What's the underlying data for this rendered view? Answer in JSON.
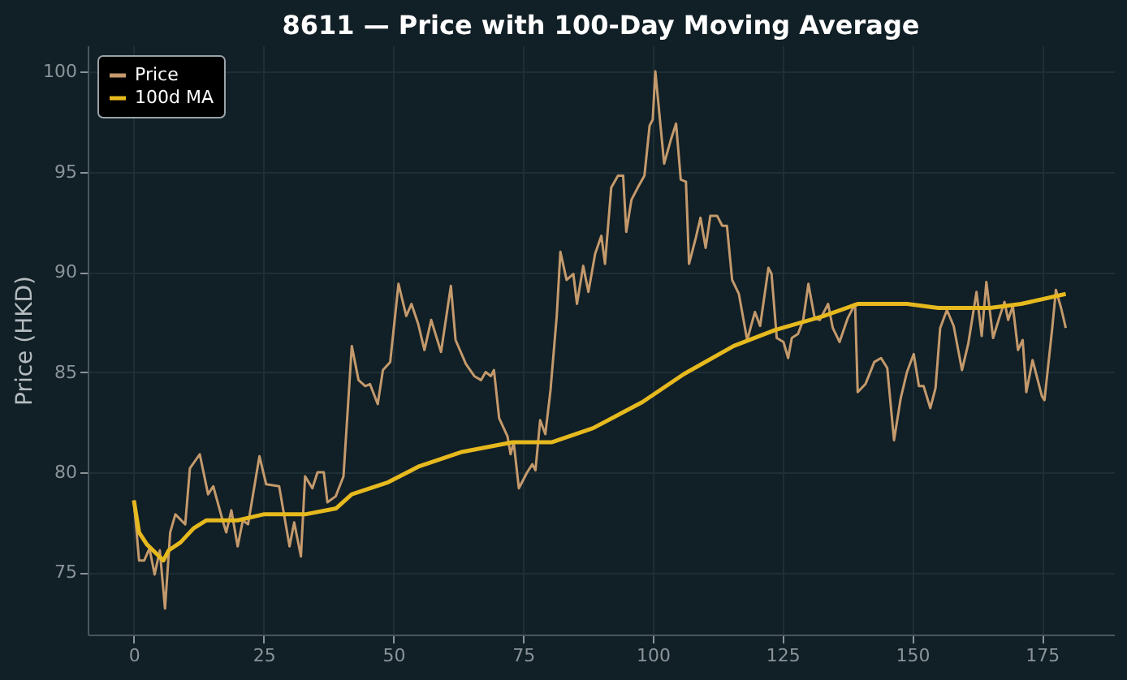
{
  "chart_data": {
    "type": "line",
    "title": "8611 — Price with 100-Day Moving Average",
    "ylabel": "Price (HKD)",
    "xlim": [
      -8.9,
      188.9
    ],
    "ylim": [
      71.9,
      101.3
    ],
    "xticks": [
      0,
      25,
      50,
      75,
      100,
      125,
      150,
      175
    ],
    "yticks": [
      75,
      80,
      85,
      90,
      95,
      100
    ],
    "grid": true,
    "legend": "top left",
    "line_style": "solid",
    "series": [
      {
        "name": "Price",
        "color": "#c49a6c",
        "x": [
          0,
          1,
          2,
          3,
          4,
          5,
          6,
          7,
          8,
          9.9,
          10.8,
          12.7,
          14.3,
          15.3,
          17,
          17.8,
          18.8,
          20,
          21,
          22,
          24.2,
          25.5,
          28,
          30,
          30.9,
          32.2,
          33,
          34.4,
          35.4,
          36.6,
          37.3,
          38.9,
          40.4,
          42,
          43.3,
          44.6,
          45.5,
          47,
          48,
          49.4,
          51,
          52.5,
          53.5,
          54.8,
          56,
          57.3,
          59.2,
          61.1,
          62,
          64,
          65.6,
          66.9,
          67.8,
          68.8,
          69.4,
          70.4,
          72,
          72.6,
          73.2,
          74.2,
          75.8,
          76.8,
          77.4,
          78.3,
          79.3,
          80.3,
          81.5,
          82.2,
          83.4,
          84.7,
          85.4,
          86.6,
          87.6,
          88.9,
          90.1,
          90.8,
          92,
          93.3,
          94.3,
          94.9,
          95.9,
          97.1,
          98.4,
          99.4,
          100,
          100.5,
          102.2,
          103.5,
          104.5,
          105.4,
          106.4,
          107,
          108.3,
          109.2,
          110.2,
          111.1,
          112.4,
          113.4,
          114.3,
          115.3,
          116.6,
          118.2,
          119.7,
          120.7,
          122.3,
          122.9,
          123.9,
          125.2,
          126.1,
          126.8,
          128,
          129,
          130,
          131.2,
          132.2,
          133.8,
          134.7,
          136,
          137.6,
          139,
          139.5,
          141,
          142.7,
          144,
          145.2,
          146.5,
          147.8,
          149,
          150.3,
          151.3,
          152.2,
          153.5,
          154.5,
          155.4,
          156.7,
          158,
          159.6,
          160.8,
          162.4,
          163.4,
          164.3,
          165.6,
          166.9,
          167.8,
          168.5,
          169.4,
          170.4,
          171.3,
          172,
          173.2,
          175,
          175.5,
          177,
          177.7,
          178.7,
          179.6
        ],
        "values": [
          78.6,
          75.6,
          75.6,
          76.2,
          74.9,
          76.1,
          73.2,
          77.0,
          77.9,
          77.4,
          80.2,
          80.9,
          78.9,
          79.3,
          77.7,
          77.0,
          78.1,
          76.3,
          77.6,
          77.4,
          80.8,
          79.4,
          79.3,
          76.3,
          77.5,
          75.8,
          79.8,
          79.2,
          80.0,
          80.0,
          78.5,
          78.8,
          79.8,
          86.3,
          84.6,
          84.3,
          84.4,
          83.4,
          85.1,
          85.5,
          89.4,
          87.8,
          88.4,
          87.4,
          86.1,
          87.6,
          86.0,
          89.3,
          86.6,
          85.4,
          84.8,
          84.6,
          85.0,
          84.8,
          85.1,
          82.7,
          81.8,
          80.9,
          81.5,
          79.2,
          80.0,
          80.4,
          80.1,
          82.6,
          81.9,
          84.1,
          87.8,
          91.0,
          89.6,
          89.9,
          88.4,
          90.3,
          89.0,
          90.9,
          91.8,
          90.4,
          94.2,
          94.8,
          94.8,
          92.0,
          93.6,
          94.2,
          94.8,
          97.3,
          97.6,
          100.0,
          95.4,
          96.6,
          97.4,
          94.6,
          94.5,
          90.4,
          91.7,
          92.7,
          91.2,
          92.8,
          92.8,
          92.3,
          92.3,
          89.6,
          88.9,
          86.6,
          88.0,
          87.3,
          90.2,
          89.9,
          86.7,
          86.5,
          85.7,
          86.7,
          86.9,
          87.6,
          89.4,
          87.7,
          87.6,
          88.4,
          87.2,
          86.5,
          87.7,
          88.4,
          84.0,
          84.4,
          85.5,
          85.7,
          85.2,
          81.6,
          83.7,
          85.0,
          85.9,
          84.3,
          84.3,
          83.2,
          84.2,
          87.2,
          88.1,
          87.3,
          85.1,
          86.4,
          89.0,
          86.8,
          89.5,
          86.7,
          87.8,
          88.5,
          87.6,
          88.3,
          86.1,
          86.6,
          84.0,
          85.6,
          83.8,
          83.6,
          87.2,
          89.1,
          88.2,
          87.2
        ]
      },
      {
        "name": "100d MA",
        "color": "#e6b91e",
        "x": [
          0,
          1,
          2.5,
          4.5,
          5.7,
          6.7,
          9,
          11.5,
          14,
          17,
          20,
          25,
          29.5,
          33,
          39,
          42,
          49,
          55,
          63,
          73,
          80.6,
          88.5,
          98,
          106,
          115.6,
          123.6,
          133,
          139.5,
          149,
          155,
          165,
          171,
          179.6
        ],
        "values": [
          78.6,
          77.0,
          76.4,
          75.9,
          75.6,
          76.1,
          76.5,
          77.2,
          77.6,
          77.6,
          77.6,
          77.9,
          77.9,
          77.9,
          78.2,
          78.9,
          79.5,
          80.3,
          81.0,
          81.5,
          81.5,
          82.2,
          83.5,
          84.9,
          86.3,
          87.1,
          87.8,
          88.4,
          88.4,
          88.2,
          88.2,
          88.4,
          88.9
        ]
      }
    ]
  }
}
